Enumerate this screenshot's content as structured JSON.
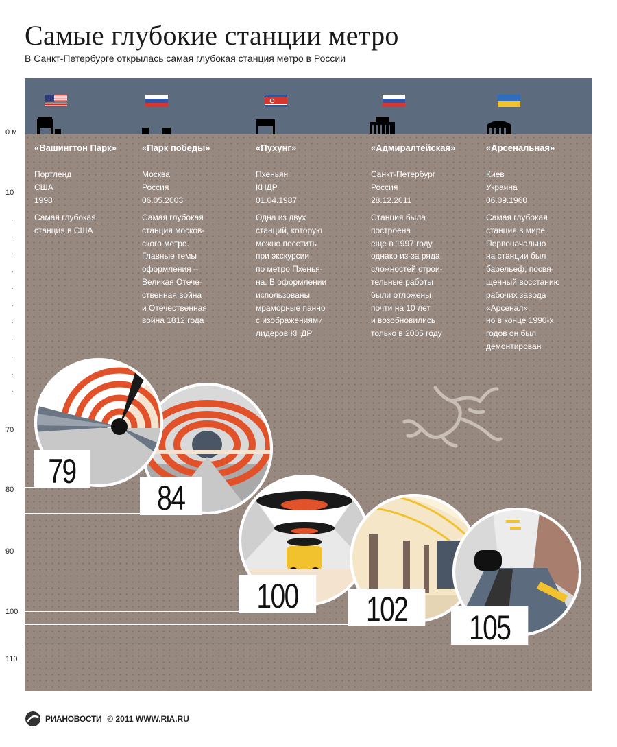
{
  "header": {
    "title": "Самые глубокие станции метро",
    "subtitle": "В Санкт-Петербурге открылась самая глубокая станция метро в России"
  },
  "depth_scale": {
    "labels": [
      "0 м",
      "10",
      "70",
      "80",
      "90",
      "100",
      "110"
    ]
  },
  "stations": [
    {
      "name": "«Вашингтон Парк»",
      "city": "Портленд",
      "country": "США",
      "date": "1998",
      "description": "Самая глубокая\nстанция в США",
      "depth": "79",
      "flag": "usa-flag-icon",
      "building": "building-icon"
    },
    {
      "name": "«Парк победы»",
      "city": "Москва",
      "country": "Россия",
      "date": "06.05.2003",
      "description": "Самая глубокая\nстанция москов-\nского метро.\nГлавные темы\nоформления –\nВеликая Отече-\nственная война\nи Отечественная\nвойна 1812 года",
      "depth": "84",
      "flag": "russia-flag-icon",
      "building": "building-icon"
    },
    {
      "name": "«Пухунг»",
      "city": "Пхеньян",
      "country": "КНДР",
      "date": "01.04.1987",
      "description": "Одна из двух\nстанций, которую\nможно посетить\nпри экскурсии\nпо метро Пхенья-\nна. В оформлении\nиспользованы\nмраморные панно\nс изображениями\nлидеров КНДР",
      "depth": "100",
      "flag": "north-korea-flag-icon",
      "building": "building-icon"
    },
    {
      "name": "«Адмиралтейская»",
      "city": "Санкт-Петербург",
      "country": "Россия",
      "date": "28.12.2011",
      "description": "Станция была\nпостроена\nеще в 1997 году,\nоднако из-за ряда\nсложностей строи-\nтельные работы\nбыли отложены\nпочти на 10 лет\nи возобновились\nтолько в 2005 году",
      "depth": "102",
      "flag": "russia-flag-icon",
      "building": "building-icon"
    },
    {
      "name": "«Арсенальная»",
      "city": "Киев",
      "country": "Украина",
      "date": "06.09.1960",
      "description": "Самая глубокая\nстанция в мире.\nПервоначально\nна станции был\nбарельеф, посвя-\nщенный восстанию\nрабочих завода\n«Арсенал»,\nно в конце 1990-х\nгодов он был\nдемонтирован",
      "depth": "105",
      "flag": "ukraine-flag-icon",
      "building": "building-icon"
    }
  ],
  "colors": {
    "sky": "#5c6b7d",
    "ground": "#978880",
    "accent_red": "#e2522a",
    "accent_yellow": "#f2c12e"
  },
  "footer": {
    "brand": "РИАНОВОСТИ",
    "copyright": "© 2011 WWW.RIA.RU"
  }
}
